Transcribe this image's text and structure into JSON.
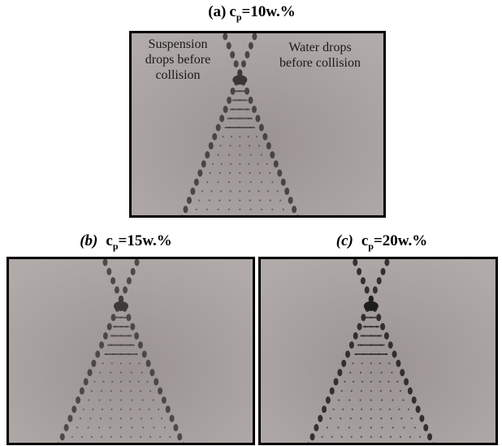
{
  "panels": [
    {
      "label": "(a)",
      "symbol": "c",
      "subscript": "p",
      "value": "=10w.%",
      "annotations": [
        {
          "lines": [
            "Suspension",
            "drops before",
            "collision"
          ]
        },
        {
          "lines": [
            "Water drops",
            "before collision"
          ]
        }
      ]
    },
    {
      "label": "(b)",
      "symbol": "c",
      "subscript": "p",
      "value": "=15w.%"
    },
    {
      "label": "(c)",
      "symbol": "c",
      "subscript": "p",
      "value": "=20w.%"
    }
  ]
}
